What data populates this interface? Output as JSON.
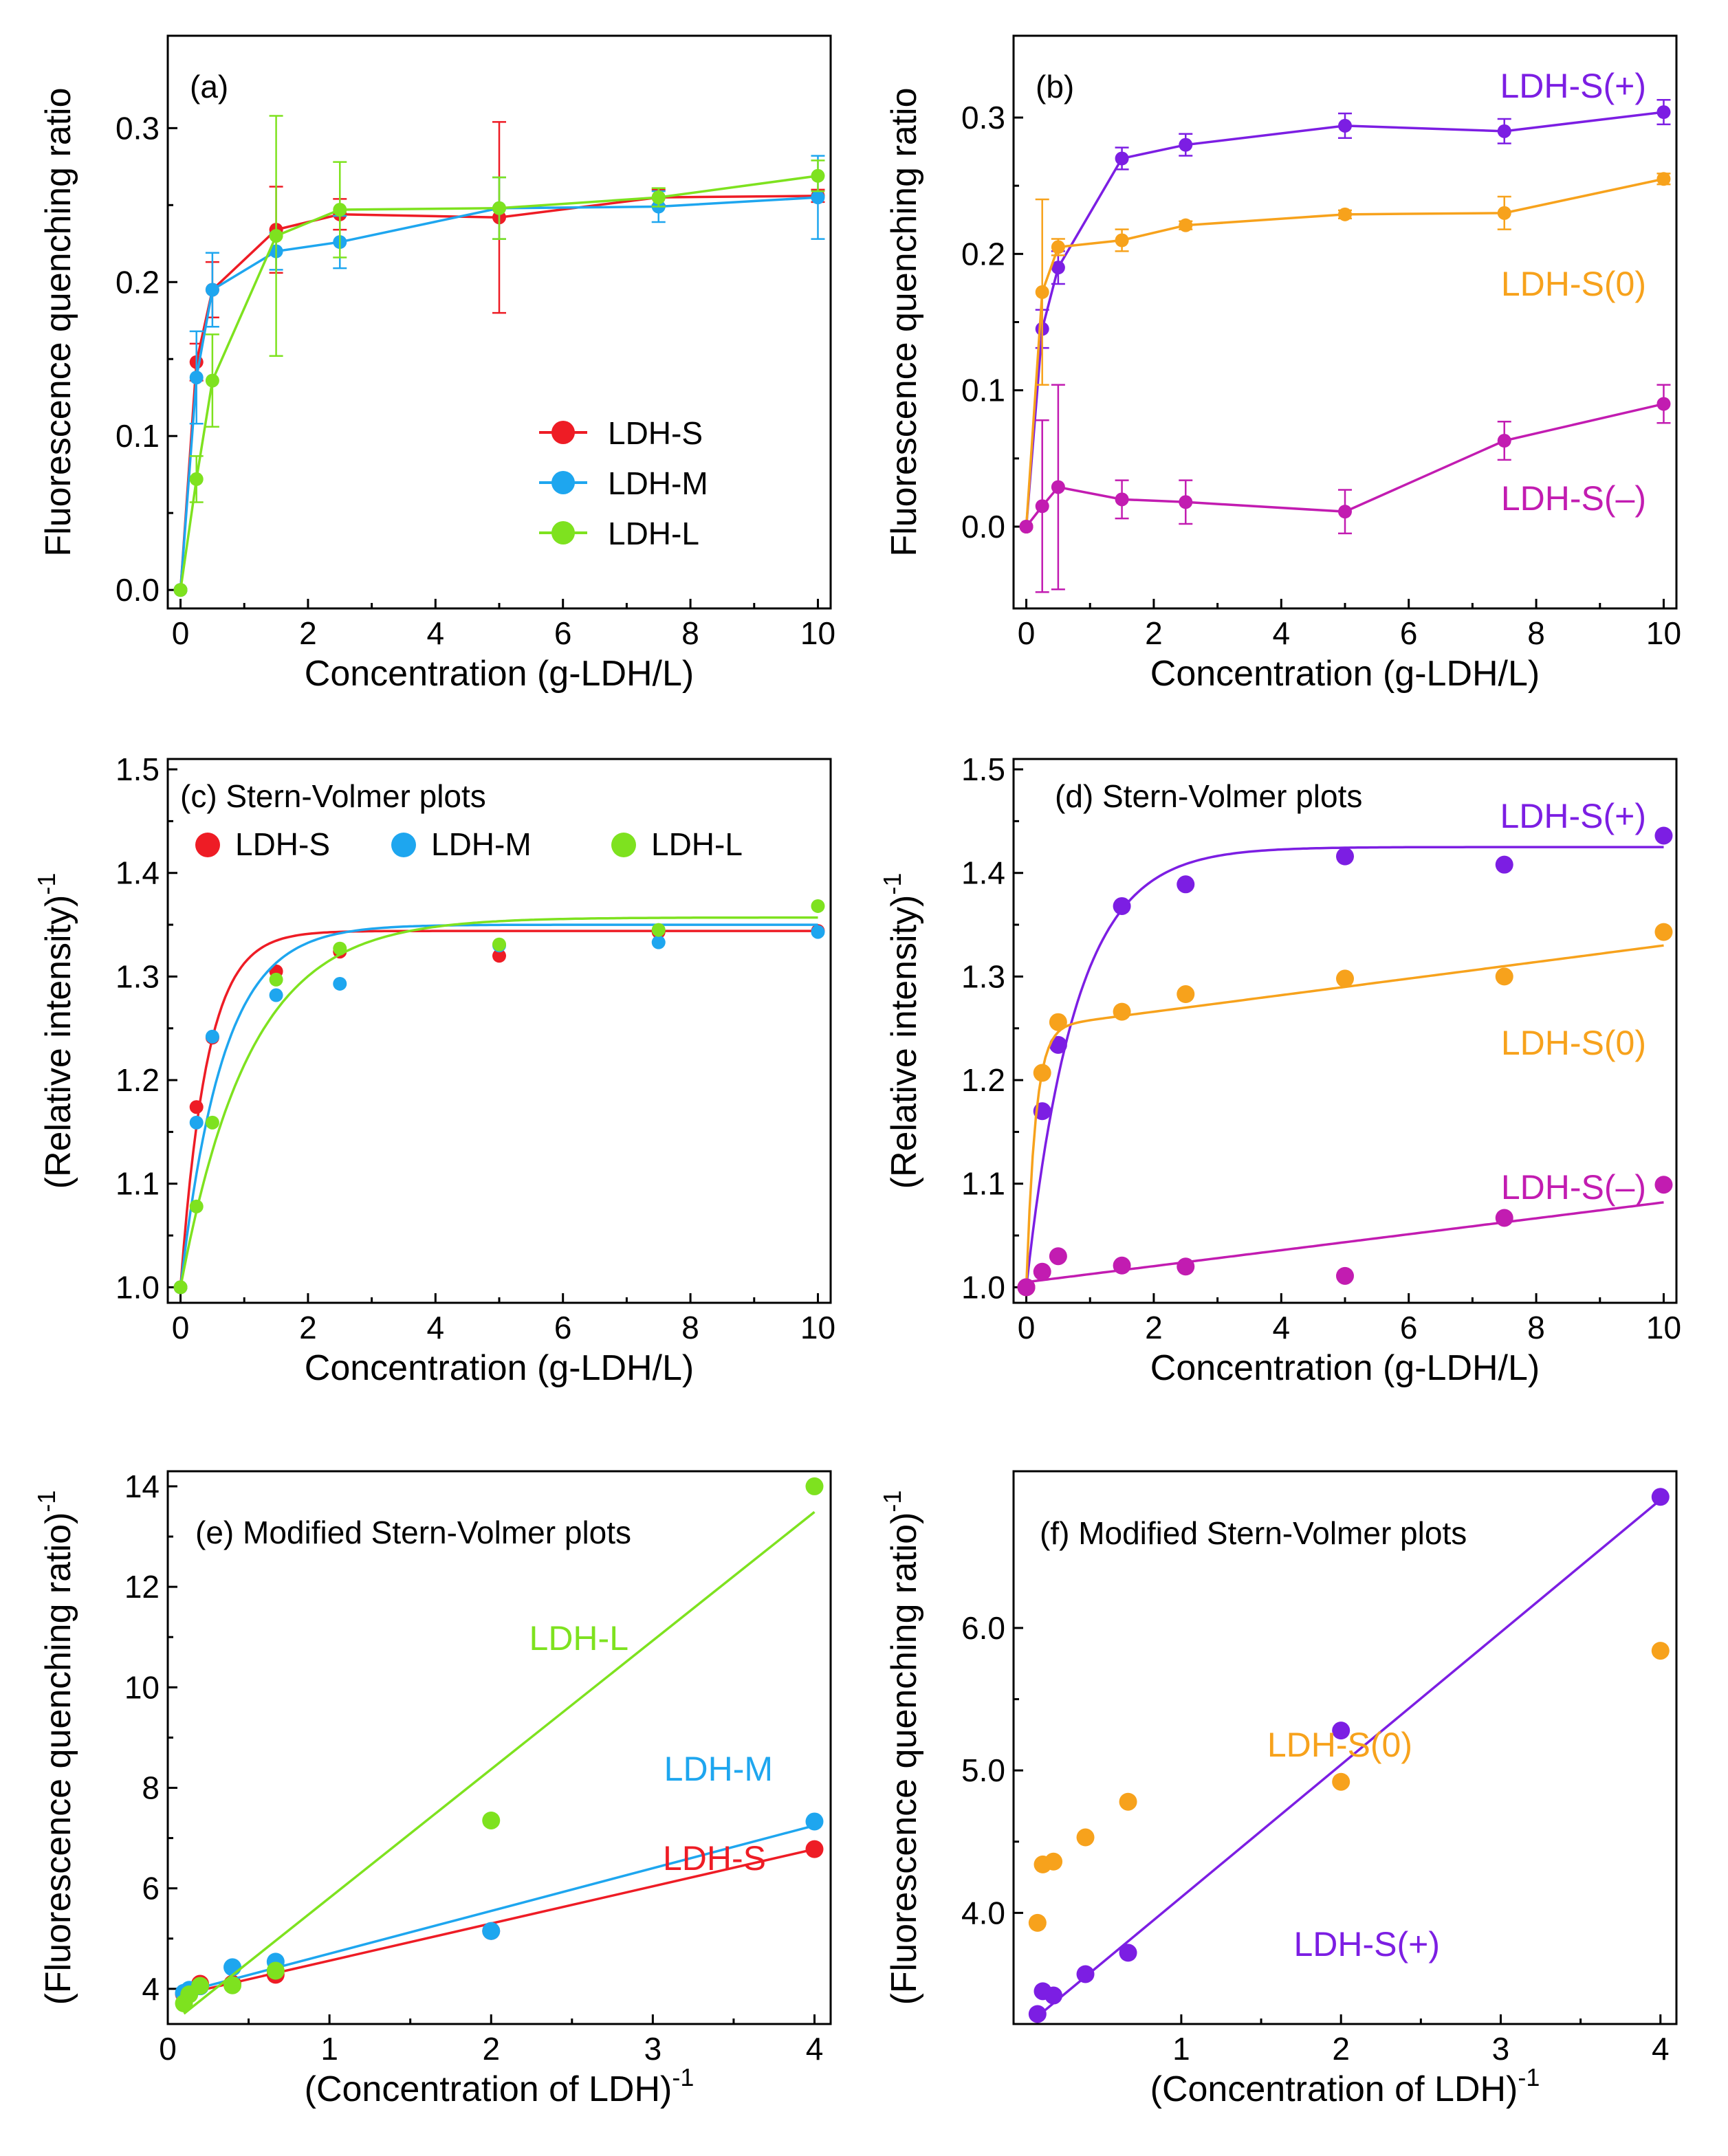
{
  "chart_data": [
    {
      "id": "a",
      "type": "line",
      "title": "(a)",
      "xlabel": "Concentration (g-LDH/L)",
      "ylabel": "Fluorescence quenching ratio",
      "xlim": [
        -0.2,
        10.2
      ],
      "ylim": [
        -0.012,
        0.36
      ],
      "xticks": [
        0,
        2,
        4,
        6,
        8,
        10
      ],
      "yticks": [
        0.0,
        0.1,
        0.2,
        0.3
      ],
      "ytick_labels": [
        "0.0",
        "0.1",
        "0.2",
        "0.3"
      ],
      "legend": "bottom-right",
      "series": [
        {
          "name": "LDH-S",
          "color": "#ee1c25",
          "x": [
            0,
            0.25,
            0.5,
            1.5,
            2.5,
            5,
            7.5,
            10
          ],
          "y": [
            0.0,
            0.148,
            0.195,
            0.234,
            0.244,
            0.242,
            0.255,
            0.256
          ],
          "err": [
            0.0,
            0.012,
            0.018,
            0.028,
            0.01,
            0.062,
            0.005,
            0.004
          ]
        },
        {
          "name": "LDH-M",
          "color": "#1ea6ef",
          "x": [
            0,
            0.25,
            0.5,
            1.5,
            2.5,
            5,
            7.5,
            10
          ],
          "y": [
            0.0,
            0.138,
            0.195,
            0.22,
            0.226,
            0.248,
            0.249,
            0.255
          ],
          "err": [
            0.0,
            0.03,
            0.024,
            0.012,
            0.017,
            0.02,
            0.01,
            0.027
          ]
        },
        {
          "name": "LDH-L",
          "color": "#7ee21f",
          "x": [
            0,
            0.25,
            0.5,
            1.5,
            2.5,
            5,
            7.5,
            10
          ],
          "y": [
            0.0,
            0.072,
            0.136,
            0.23,
            0.247,
            0.248,
            0.255,
            0.269
          ],
          "err": [
            0.0,
            0.015,
            0.03,
            0.078,
            0.031,
            0.02,
            0.006,
            0.01
          ]
        }
      ]
    },
    {
      "id": "b",
      "type": "line",
      "title": "(b)",
      "xlabel": "Concentration (g-LDH/L)",
      "ylabel": "Fluorescence quenching ratio",
      "xlim": [
        -0.2,
        10.2
      ],
      "ylim": [
        -0.06,
        0.36
      ],
      "xticks": [
        0,
        2,
        4,
        6,
        8,
        10
      ],
      "yticks": [
        0.0,
        0.1,
        0.2,
        0.3
      ],
      "ytick_labels": [
        "0.0",
        "0.1",
        "0.2",
        "0.3"
      ],
      "series": [
        {
          "name": "LDH-S(+)",
          "color": "#7c1ee3",
          "x": [
            0,
            0.25,
            0.5,
            1.5,
            2.5,
            5,
            7.5,
            10
          ],
          "y": [
            0.0,
            0.145,
            0.19,
            0.27,
            0.28,
            0.294,
            0.29,
            0.304
          ],
          "err": [
            0.0,
            0.014,
            0.012,
            0.008,
            0.008,
            0.009,
            0.009,
            0.009
          ]
        },
        {
          "name": "LDH-S(0)",
          "color": "#f7a21c",
          "x": [
            0,
            0.25,
            0.5,
            1.5,
            2.5,
            5,
            7.5,
            10
          ],
          "y": [
            0.0,
            0.172,
            0.205,
            0.21,
            0.221,
            0.229,
            0.23,
            0.255
          ],
          "err": [
            0.0,
            0.068,
            0.006,
            0.008,
            0.003,
            0.003,
            0.012,
            0.004
          ]
        },
        {
          "name": "LDH-S(–)",
          "color": "#c21cb1",
          "x": [
            0,
            0.25,
            0.5,
            1.5,
            2.5,
            5,
            7.5,
            10
          ],
          "y": [
            0.0,
            0.015,
            0.029,
            0.02,
            0.018,
            0.011,
            0.063,
            0.09
          ],
          "err": [
            0.0,
            0.063,
            0.075,
            0.014,
            0.016,
            0.016,
            0.014,
            0.014
          ]
        }
      ],
      "annotations": [
        {
          "text": "LDH-S(+)",
          "series": 0
        },
        {
          "text": "LDH-S(0)",
          "series": 1
        },
        {
          "text": "LDH-S(–)",
          "series": 2
        }
      ]
    },
    {
      "id": "c",
      "type": "scatter",
      "title": "(c) Stern-Volmer plots",
      "xlabel": "Concentration (g-LDH/L)",
      "ylabel": "(Relative intensity)",
      "ylabel_sup": "-1",
      "xlim": [
        -0.2,
        10.2
      ],
      "ylim": [
        0.985,
        1.51
      ],
      "xticks": [
        0,
        2,
        4,
        6,
        8,
        10
      ],
      "yticks": [
        1.0,
        1.1,
        1.2,
        1.3,
        1.4,
        1.5
      ],
      "ytick_labels": [
        "1.0",
        "1.1",
        "1.2",
        "1.3",
        "1.4",
        "1.5"
      ],
      "legend": "top (horizontal)",
      "series": [
        {
          "name": "LDH-S",
          "color": "#ee1c25",
          "x": [
            0,
            0.25,
            0.5,
            1.5,
            2.5,
            5,
            7.5,
            10
          ],
          "y": [
            1.0,
            1.174,
            1.241,
            1.305,
            1.324,
            1.32,
            1.343,
            1.344
          ],
          "fit": {
            "a": 1.344,
            "b": 0.344,
            "k": 2.4
          }
        },
        {
          "name": "LDH-M",
          "color": "#1ea6ef",
          "x": [
            0,
            0.25,
            0.5,
            1.5,
            2.5,
            5,
            7.5,
            10
          ],
          "y": [
            1.0,
            1.159,
            1.242,
            1.282,
            1.293,
            1.33,
            1.333,
            1.343
          ],
          "fit": {
            "a": 1.35,
            "b": 0.35,
            "k": 1.5
          }
        },
        {
          "name": "LDH-L",
          "color": "#7ee21f",
          "x": [
            0,
            0.25,
            0.5,
            1.5,
            2.5,
            5,
            7.5,
            10
          ],
          "y": [
            1.0,
            1.078,
            1.159,
            1.297,
            1.327,
            1.331,
            1.345,
            1.368
          ],
          "fit": {
            "a": 1.357,
            "b": 0.357,
            "k": 0.92
          }
        }
      ]
    },
    {
      "id": "d",
      "type": "scatter",
      "title": "(d) Stern-Volmer plots",
      "xlabel": "Concentration (g-LDH/L)",
      "ylabel": "(Relative intensity)",
      "ylabel_sup": "-1",
      "xlim": [
        -0.2,
        10.2
      ],
      "ylim": [
        0.985,
        1.51
      ],
      "xticks": [
        0,
        2,
        4,
        6,
        8,
        10
      ],
      "yticks": [
        1.0,
        1.1,
        1.2,
        1.3,
        1.4,
        1.5
      ],
      "ytick_labels": [
        "1.0",
        "1.1",
        "1.2",
        "1.3",
        "1.4",
        "1.5"
      ],
      "series": [
        {
          "name": "LDH-S(+)",
          "color": "#7c1ee3",
          "x": [
            0,
            0.25,
            0.5,
            1.5,
            2.5,
            5,
            7.5,
            10
          ],
          "y": [
            1.0,
            1.17,
            1.234,
            1.368,
            1.389,
            1.416,
            1.408,
            1.436
          ],
          "fit": {
            "a": 1.425,
            "b": 0.425,
            "k": 1.3
          }
        },
        {
          "name": "LDH-S(0)",
          "color": "#f7a21c",
          "x": [
            0,
            0.25,
            0.5,
            1.5,
            2.5,
            5,
            7.5,
            10
          ],
          "y": [
            1.0,
            1.207,
            1.256,
            1.266,
            1.283,
            1.298,
            1.3,
            1.343
          ],
          "fit": {
            "a": 1.25,
            "b": 0.25,
            "k": 7.0,
            "m": 0.008
          }
        },
        {
          "name": "LDH-S(–)",
          "color": "#c21cb1",
          "x": [
            0,
            0.25,
            0.5,
            1.5,
            2.5,
            5,
            7.5,
            10
          ],
          "y": [
            1.0,
            1.015,
            1.03,
            1.021,
            1.02,
            1.011,
            1.067,
            1.099
          ],
          "fit": {
            "a": 1.005,
            "b": 0.0,
            "k": 1.0,
            "m": 0.0077
          }
        }
      ],
      "annotations": [
        {
          "text": "LDH-S(+)",
          "series": 0
        },
        {
          "text": "LDH-S(0)",
          "series": 1
        },
        {
          "text": "LDH-S(–)",
          "series": 2
        }
      ]
    },
    {
      "id": "e",
      "type": "scatter",
      "title": "(e) Modified Stern-Volmer plots",
      "xlabel": "(Concentration of LDH)",
      "xlabel_sup": "-1",
      "ylabel": "(Fluorescence quenching ratio)",
      "ylabel_sup": "-1",
      "xlim": [
        0.0,
        4.1
      ],
      "ylim": [
        3.3,
        14.3
      ],
      "xticks": [
        0,
        1,
        2,
        3,
        4
      ],
      "yticks": [
        4,
        6,
        8,
        10,
        12,
        14
      ],
      "ytick_labels": [
        "4",
        "6",
        "8",
        "10",
        "12",
        "14"
      ],
      "series": [
        {
          "name": "LDH-S",
          "color": "#ee1c25",
          "x": [
            0.1,
            0.133,
            0.2,
            0.4,
            0.667,
            2,
            4
          ],
          "y": [
            3.9,
            3.92,
            4.1,
            4.1,
            4.28,
            5.15,
            6.78
          ],
          "fit": {
            "slope": 0.74,
            "intercept": 3.82,
            "x0": 0.1,
            "x1": 4
          }
        },
        {
          "name": "LDH-M",
          "color": "#1ea6ef",
          "x": [
            0.1,
            0.133,
            0.2,
            0.4,
            0.667,
            2,
            4
          ],
          "y": [
            3.92,
            3.98,
            4.05,
            4.43,
            4.54,
            5.15,
            7.33
          ],
          "fit": {
            "slope": 0.85,
            "intercept": 3.85,
            "x0": 0.1,
            "x1": 4
          }
        },
        {
          "name": "LDH-L",
          "color": "#7ee21f",
          "x": [
            0.1,
            0.133,
            0.2,
            0.4,
            0.667,
            2,
            4
          ],
          "y": [
            3.71,
            3.89,
            4.06,
            4.07,
            4.36,
            7.35,
            14.0
          ],
          "fit": {
            "slope": 2.56,
            "intercept": 3.25,
            "x0": 0.1,
            "x1": 4
          }
        }
      ],
      "annotations": [
        {
          "text": "LDH-L",
          "series": 2
        },
        {
          "text": "LDH-M",
          "series": 1
        },
        {
          "text": "LDH-S",
          "series": 0
        }
      ]
    },
    {
      "id": "f",
      "type": "scatter",
      "title": "(f) Modified Stern-Volmer plots",
      "xlabel": "(Concentration of LDH)",
      "xlabel_sup": "-1",
      "ylabel": "(Fluorescence quenching ratio)",
      "ylabel_sup": "-1",
      "xlim": [
        -0.05,
        4.1
      ],
      "ylim": [
        3.22,
        7.1
      ],
      "xticks": [
        1,
        2,
        3,
        4
      ],
      "yticks": [
        4.0,
        5.0,
        6.0
      ],
      "ytick_labels": [
        "4.0",
        "5.0",
        "6.0"
      ],
      "series": [
        {
          "name": "LDH-S(+)",
          "color": "#7c1ee3",
          "x": [
            0.1,
            0.133,
            0.2,
            0.4,
            0.667,
            2,
            4
          ],
          "y": [
            3.29,
            3.45,
            3.42,
            3.57,
            3.72,
            5.28,
            6.92
          ],
          "fit": {
            "slope": 0.93,
            "intercept": 3.18,
            "x0": 0.1,
            "x1": 4
          }
        },
        {
          "name": "LDH-S(0)",
          "color": "#f7a21c",
          "x": [
            0.1,
            0.133,
            0.2,
            0.4,
            0.667,
            2,
            4
          ],
          "y": [
            3.93,
            4.34,
            4.36,
            4.53,
            4.78,
            4.92,
            5.84
          ]
        }
      ],
      "annotations": [
        {
          "text": "LDH-S(0)",
          "series": 1
        },
        {
          "text": "LDH-S(+)",
          "series": 0
        }
      ]
    }
  ]
}
